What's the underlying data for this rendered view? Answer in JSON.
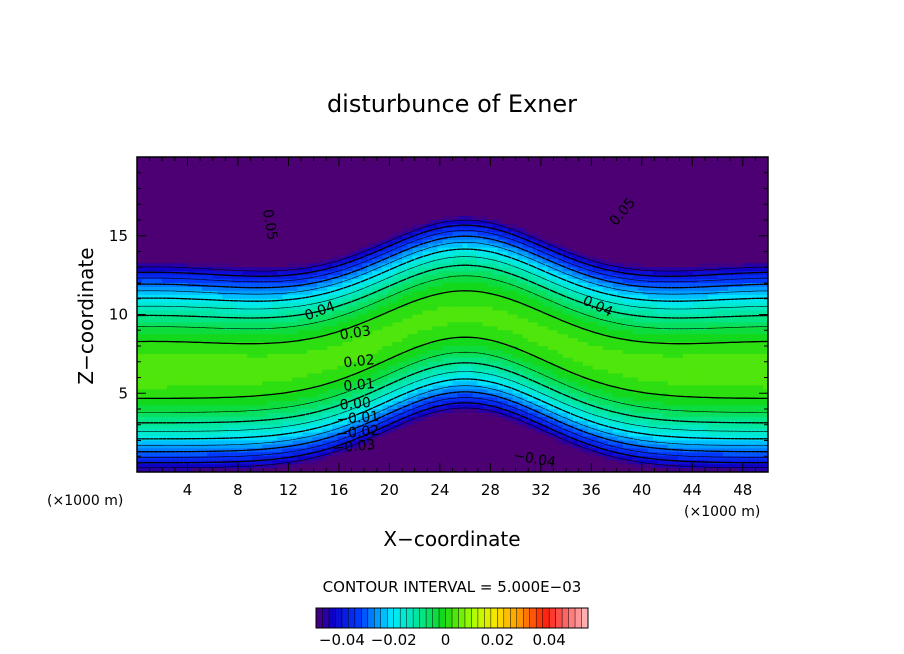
{
  "chart_data": {
    "type": "contour",
    "title": "disturbunce of Exner",
    "xlabel": "X−coordinate",
    "ylabel": "Z−coordinate",
    "x_unit": "(×1000 m)",
    "y_unit": "(×1000 m)",
    "xlim": [
      0,
      50
    ],
    "ylim": [
      0,
      20
    ],
    "x_ticks": [
      4,
      8,
      12,
      16,
      20,
      24,
      28,
      32,
      36,
      40,
      44,
      48
    ],
    "y_ticks": [
      5,
      10,
      15
    ],
    "x_tick_labels": [
      "4",
      "8",
      "12",
      "16",
      "20",
      "24",
      "28",
      "32",
      "36",
      "40",
      "44",
      "48"
    ],
    "y_tick_labels": [
      "5",
      "10",
      "15"
    ],
    "contour_interval": 0.005,
    "contour_interval_label": "CONTOUR INTERVAL = 5.000E−03",
    "field_range": [
      -0.05,
      0.055
    ],
    "negative_contours": "dashed",
    "contour_labels": [
      {
        "text": "0.05",
        "x": 10.5,
        "z": 15.7,
        "rotation": 80
      },
      {
        "text": "0.05",
        "x": 38.5,
        "z": 16.5,
        "rotation": -50
      },
      {
        "text": "0.04",
        "x": 14.5,
        "z": 10.2,
        "rotation": -20
      },
      {
        "text": "0.04",
        "x": 36.5,
        "z": 10.5,
        "rotation": 25
      },
      {
        "text": "0.03",
        "x": 17.3,
        "z": 8.8,
        "rotation": -8
      },
      {
        "text": "0.02",
        "x": 17.6,
        "z": 7.0,
        "rotation": -6
      },
      {
        "text": "0.01",
        "x": 17.6,
        "z": 5.5,
        "rotation": -5
      },
      {
        "text": "0.00",
        "x": 17.3,
        "z": 4.3,
        "rotation": -5
      },
      {
        "text": "−0.01",
        "x": 17.5,
        "z": 3.4,
        "rotation": -5
      },
      {
        "text": "−0.02",
        "x": 17.5,
        "z": 2.5,
        "rotation": -5
      },
      {
        "text": "−0.03",
        "x": 17.2,
        "z": 1.6,
        "rotation": -5
      },
      {
        "text": "−0.04",
        "x": 31.5,
        "z": 0.8,
        "rotation": 10
      }
    ],
    "colorbar": {
      "range": [
        -0.05,
        0.055
      ],
      "tick_values": [
        -0.04,
        -0.02,
        0,
        0.02,
        0.04
      ],
      "tick_labels": [
        "−0.04",
        "−0.02",
        "0",
        "0.02",
        "0.04"
      ]
    }
  }
}
